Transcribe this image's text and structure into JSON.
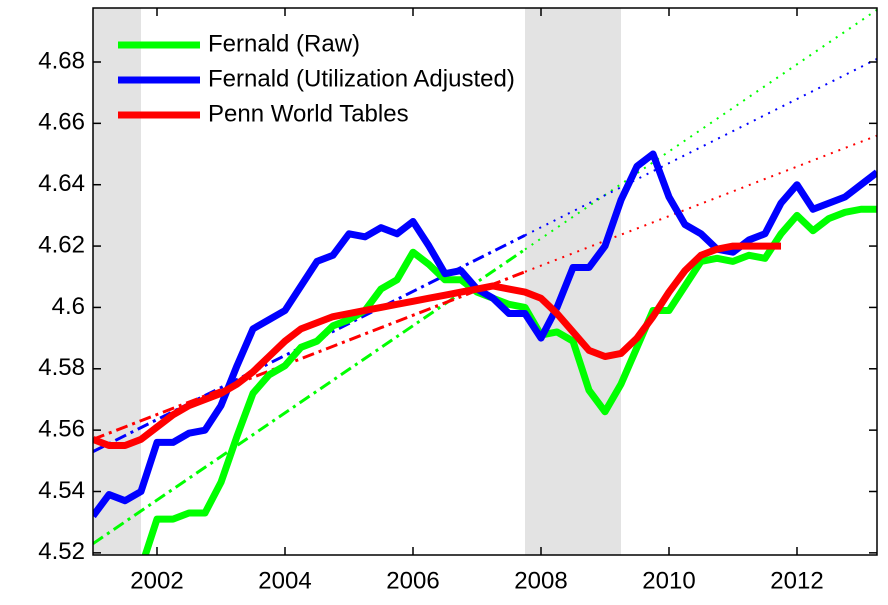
{
  "chart_data": {
    "type": "line",
    "x": [
      2001,
      2001.25,
      2001.5,
      2001.75,
      2002,
      2002.25,
      2002.5,
      2002.75,
      2003,
      2003.25,
      2003.5,
      2003.75,
      2004,
      2004.25,
      2004.5,
      2004.75,
      2005,
      2005.25,
      2005.5,
      2005.75,
      2006,
      2006.25,
      2006.5,
      2006.75,
      2007,
      2007.25,
      2007.5,
      2007.75,
      2008,
      2008.25,
      2008.5,
      2008.75,
      2009,
      2009.25,
      2009.5,
      2009.75,
      2010,
      2010.25,
      2010.5,
      2010.75,
      2011,
      2011.25,
      2011.5,
      2011.75,
      2012,
      2012.25,
      2012.5,
      2012.75,
      2013,
      2013.25
    ],
    "series": [
      {
        "name": "Fernald (Raw)",
        "color": "#00ff00",
        "values": [
          4.514,
          4.516,
          4.513,
          4.515,
          4.531,
          4.531,
          4.533,
          4.533,
          4.543,
          4.558,
          4.572,
          4.578,
          4.581,
          4.587,
          4.589,
          4.594,
          4.596,
          4.599,
          4.606,
          4.609,
          4.618,
          4.614,
          4.609,
          4.609,
          4.605,
          4.603,
          4.601,
          4.6,
          4.591,
          4.592,
          4.589,
          4.573,
          4.566,
          4.575,
          4.587,
          4.599,
          4.599,
          4.607,
          4.615,
          4.616,
          4.615,
          4.617,
          4.616,
          4.624,
          4.63,
          4.625,
          4.629,
          4.631,
          4.632,
          4.632
        ],
        "trend": [
          4.523,
          4.6189,
          4.697
        ]
      },
      {
        "name": "Fernald (Utilization Adjusted)",
        "color": "#0000ff",
        "values": [
          4.532,
          4.539,
          4.537,
          4.54,
          4.556,
          4.556,
          4.559,
          4.56,
          4.568,
          4.581,
          4.593,
          4.596,
          4.599,
          4.607,
          4.615,
          4.617,
          4.624,
          4.623,
          4.626,
          4.624,
          4.628,
          4.62,
          4.611,
          4.612,
          4.606,
          4.603,
          4.598,
          4.598,
          4.59,
          4.6,
          4.613,
          4.613,
          4.62,
          4.635,
          4.646,
          4.65,
          4.636,
          4.627,
          4.624,
          4.619,
          4.618,
          4.622,
          4.624,
          4.634,
          4.64,
          4.632,
          4.634,
          4.636,
          4.64,
          4.644
        ],
        "trend": [
          4.553,
          4.6235,
          4.681
        ]
      },
      {
        "name": "Penn World Tables",
        "color": "#ff0000",
        "values": [
          4.557,
          4.555,
          4.555,
          4.557,
          4.561,
          4.565,
          4.568,
          4.57,
          4.572,
          4.575,
          4.579,
          4.584,
          4.589,
          4.593,
          4.595,
          4.597,
          4.598,
          4.599,
          4.6,
          4.601,
          4.602,
          4.603,
          4.604,
          4.605,
          4.606,
          4.607,
          4.606,
          4.605,
          4.603,
          4.598,
          4.592,
          4.586,
          4.584,
          4.585,
          4.59,
          4.597,
          4.605,
          4.612,
          4.617,
          4.619,
          4.62,
          4.62,
          4.62,
          4.62,
          null,
          null,
          null,
          null,
          null,
          null
        ],
        "trend": [
          4.557,
          4.6116,
          4.656
        ]
      }
    ],
    "trend_x": [
      2001,
      2007.75,
      2013.25
    ],
    "recessions": [
      [
        2001,
        2001.75
      ],
      [
        2007.75,
        2009.25
      ]
    ],
    "xlim": [
      2001,
      2013.25
    ],
    "ylim": [
      4.5193,
      4.6976
    ],
    "xticks": [
      2002,
      2004,
      2006,
      2008,
      2010,
      2012
    ],
    "yticks": [
      4.52,
      4.54,
      4.56,
      4.58,
      4.6,
      4.62,
      4.64,
      4.66,
      4.68
    ],
    "legend": "upper-left"
  }
}
